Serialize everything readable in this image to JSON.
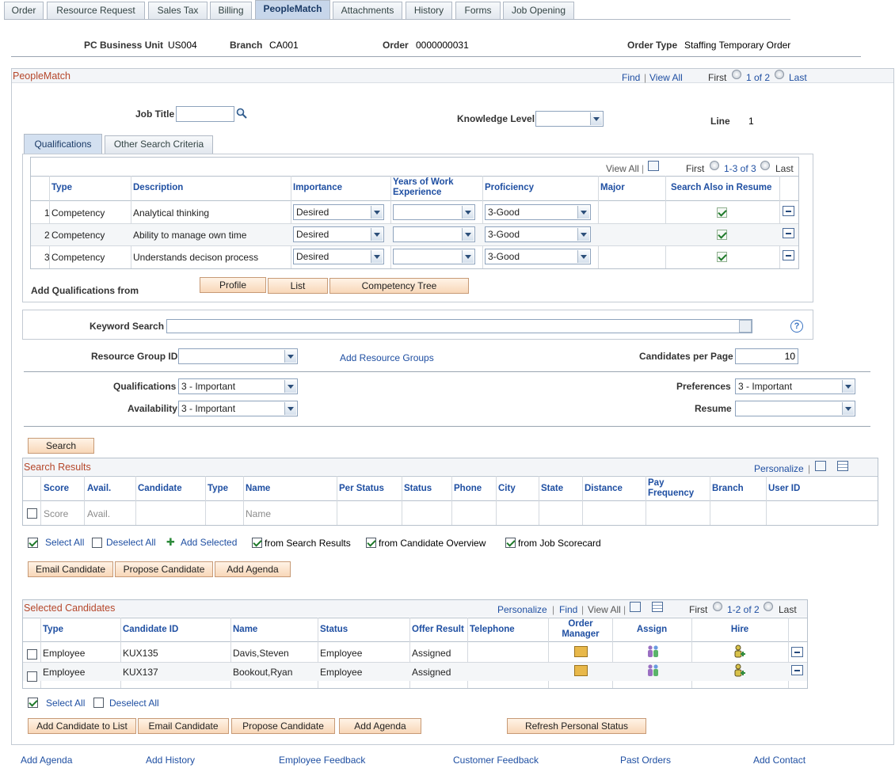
{
  "page_tabs": [
    "Order",
    "Resource Request",
    "Sales Tax",
    "Billing",
    "PeopleMatch",
    "Attachments",
    "History",
    "Forms",
    "Job Opening"
  ],
  "header": {
    "bu_label": "PC Business Unit",
    "bu_value": "US004",
    "branch_label": "Branch",
    "branch_value": "CA001",
    "order_label": "Order",
    "order_value": "0000000031",
    "ordertype_label": "Order Type",
    "ordertype_value": "Staffing Temporary Order"
  },
  "peoplematch": {
    "title": "PeopleMatch",
    "find": "Find",
    "viewall": "View All",
    "first": "First",
    "counter": "1 of 2",
    "last": "Last",
    "job_title_label": "Job Title",
    "job_title_value": "",
    "knowledge_label": "Knowledge Level",
    "knowledge_value": "",
    "line_label": "Line",
    "line_value": "1"
  },
  "subtabs": [
    "Qualifications",
    "Other Search Criteria"
  ],
  "qual_grid": {
    "viewall": "View All",
    "first": "First",
    "counter": "1-3 of 3",
    "last": "Last",
    "headers": {
      "type": "Type",
      "description": "Description",
      "importance": "Importance",
      "years": "Years of Work Experience",
      "proficiency": "Proficiency",
      "major": "Major",
      "search_resume": "Search Also in Resume"
    },
    "rows": [
      {
        "n": "1",
        "type": "Competency",
        "desc": "Analytical thinking",
        "importance": "Desired",
        "years": "",
        "proficiency": "3-Good",
        "major": "",
        "resume": true
      },
      {
        "n": "2",
        "type": "Competency",
        "desc": "Ability to manage own time",
        "importance": "Desired",
        "years": "",
        "proficiency": "3-Good",
        "major": "",
        "resume": true
      },
      {
        "n": "3",
        "type": "Competency",
        "desc": "Understands decison process",
        "importance": "Desired",
        "years": "",
        "proficiency": "3-Good",
        "major": "",
        "resume": true
      }
    ],
    "add_from_label": "Add Qualifications from",
    "buttons": [
      "Profile",
      "List",
      "Competency Tree"
    ]
  },
  "criteria": {
    "keyword_label": "Keyword Search",
    "keyword_value": "",
    "resgroup_label": "Resource Group ID",
    "resgroup_value": "",
    "add_resgroups": "Add Resource Groups",
    "cpp_label": "Candidates per Page",
    "cpp_value": "10",
    "qual_label": "Qualifications",
    "qual_value": "3 - Important",
    "avail_label": "Availability",
    "avail_value": "3 - Important",
    "pref_label": "Preferences",
    "pref_value": "3 - Important",
    "resume_label": "Resume",
    "resume_value": "",
    "search_button": "Search"
  },
  "search_results": {
    "title": "Search Results",
    "personalize": "Personalize",
    "headers": [
      "Score",
      "Avail.",
      "Candidate",
      "Type",
      "Name",
      "Per Status",
      "Status",
      "Phone",
      "City",
      "State",
      "Distance",
      "Pay Frequency",
      "Branch",
      "User ID"
    ],
    "row": {
      "score": "Score",
      "avail": "Avail.",
      "name": "Name"
    },
    "select_all": "Select All",
    "deselect_all": "Deselect All",
    "add_selected": "Add Selected",
    "opts": [
      "from Search Results",
      "from Candidate Overview",
      "from Job Scorecard"
    ],
    "buttons": [
      "Email Candidate",
      "Propose Candidate",
      "Add Agenda"
    ]
  },
  "selected": {
    "title": "Selected Candidates",
    "personalize": "Personalize",
    "find": "Find",
    "viewall": "View All",
    "first": "First",
    "counter": "1-2 of 2",
    "last": "Last",
    "headers": {
      "type": "Type",
      "cid": "Candidate ID",
      "name": "Name",
      "status": "Status",
      "offer": "Offer Result",
      "tel": "Telephone",
      "om": "Order Manager",
      "assign": "Assign",
      "hire": "Hire"
    },
    "rows": [
      {
        "type": "Employee",
        "cid": "KUX135",
        "name": "Davis,Steven",
        "status": "Employee",
        "offer": "Assigned",
        "tel": ""
      },
      {
        "type": "Employee",
        "cid": "KUX137",
        "name": "Bookout,Ryan",
        "status": "Employee",
        "offer": "Assigned",
        "tel": ""
      }
    ],
    "select_all": "Select All",
    "deselect_all": "Deselect All",
    "buttons": [
      "Add Candidate to List",
      "Email Candidate",
      "Propose Candidate",
      "Add Agenda"
    ],
    "refresh": "Refresh Personal Status"
  },
  "footer_links": [
    "Add Agenda",
    "Add History",
    "Employee Feedback",
    "Customer Feedback",
    "Past Orders",
    "Add Contact"
  ]
}
